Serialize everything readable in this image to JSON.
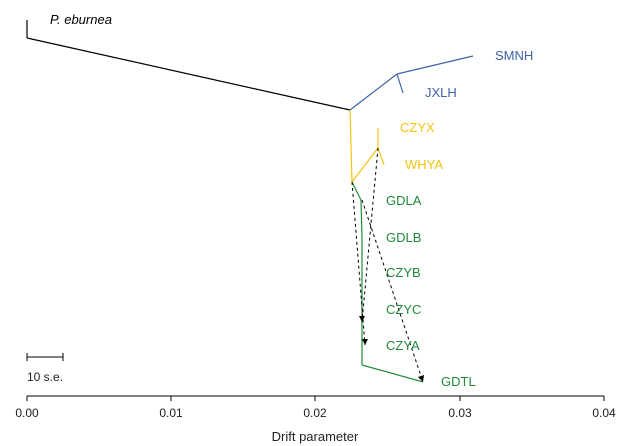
{
  "chart_data": {
    "type": "tree",
    "x_axis": {
      "label": "Drift parameter",
      "range": [
        0.0,
        0.04
      ],
      "ticks": [
        "0.00",
        "0.01",
        "0.02",
        "0.03",
        "0.04"
      ]
    },
    "scale_bar": {
      "label": "10 s.e."
    },
    "colors": {
      "outgroup": "#000000",
      "blue": "#3f63a8",
      "yellow": "#f4c314",
      "green": "#1f8a3a",
      "migration": "#000000"
    },
    "tips": [
      {
        "name": "P. eburnea",
        "italic": true,
        "color": "#000000"
      },
      {
        "name": "SMNH",
        "color": "#3f63a8"
      },
      {
        "name": "JXLH",
        "color": "#3f63a8"
      },
      {
        "name": "CZYX",
        "color": "#f4c314"
      },
      {
        "name": "WHYA",
        "color": "#f4c314"
      },
      {
        "name": "GDLA",
        "color": "#1f8a3a"
      },
      {
        "name": "GDLB",
        "color": "#1f8a3a"
      },
      {
        "name": "CZYB",
        "color": "#1f8a3a"
      },
      {
        "name": "CZYC",
        "color": "#1f8a3a"
      },
      {
        "name": "CZYA",
        "color": "#1f8a3a"
      },
      {
        "name": "GDTL",
        "color": "#1f8a3a"
      }
    ],
    "migration_edges": 3
  }
}
